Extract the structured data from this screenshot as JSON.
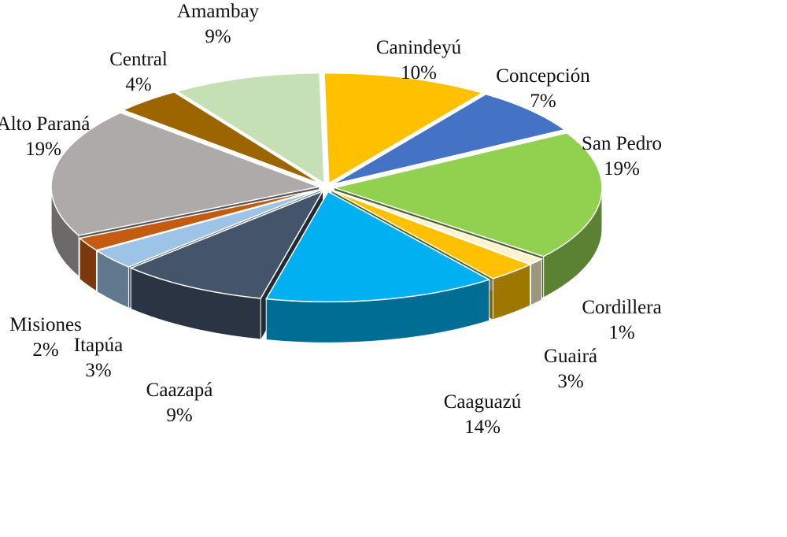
{
  "chart_data": {
    "type": "pie",
    "style": "3d-exploded",
    "title": "",
    "legend": "none",
    "slices": [
      {
        "name": "Canindeyú",
        "percent_label": "10%",
        "value": 10,
        "color": "#FFC000"
      },
      {
        "name": "Concepción",
        "percent_label": "7%",
        "value": 7,
        "color": "#4472C4"
      },
      {
        "name": "San Pedro",
        "percent_label": "19%",
        "value": 19,
        "color": "#92D050"
      },
      {
        "name": "Cordillera",
        "percent_label": "1%",
        "value": 1,
        "color": "#FFF2CC"
      },
      {
        "name": "Guairá",
        "percent_label": "3%",
        "value": 3,
        "color": "#FFC000"
      },
      {
        "name": "Caaguazú",
        "percent_label": "14%",
        "value": 14,
        "color": "#00B0F0"
      },
      {
        "name": "Caazapá",
        "percent_label": "9%",
        "value": 9,
        "color": "#44546A"
      },
      {
        "name": "Itapúa",
        "percent_label": "3%",
        "value": 3,
        "color": "#9DC3E6"
      },
      {
        "name": "Misiones",
        "percent_label": "2%",
        "value": 2,
        "color": "#C55A11"
      },
      {
        "name": "Alto Paraná",
        "percent_label": "19%",
        "value": 19,
        "color": "#AEAAAA"
      },
      {
        "name": "Central",
        "percent_label": "4%",
        "value": 4,
        "color": "#9C6500"
      },
      {
        "name": "Amambay",
        "percent_label": "9%",
        "value": 9,
        "color": "#C5E0B4"
      }
    ]
  }
}
